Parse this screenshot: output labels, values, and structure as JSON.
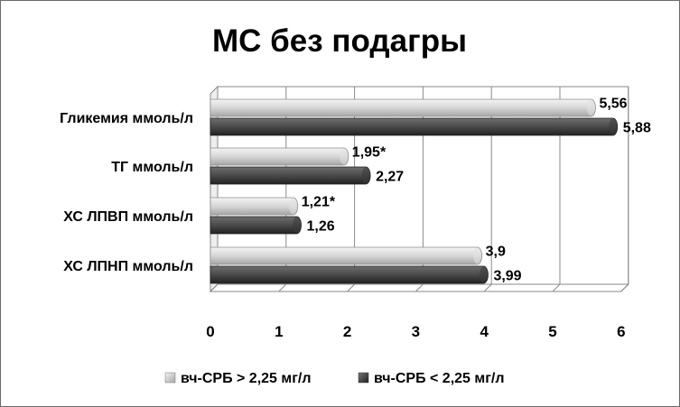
{
  "chart_data": {
    "type": "bar",
    "orientation": "horizontal",
    "title": "МС без подагры",
    "categories": [
      "Гликемия ммоль/л",
      "ТГ ммоль/л",
      "ХС ЛПВП ммоль/л",
      "ХС ЛПНП ммоль/л"
    ],
    "series": [
      {
        "name": "вч-СРБ > 2,25 мг/л",
        "color": "#d4d4d4",
        "values": [
          5.56,
          1.95,
          1.21,
          3.9
        ],
        "labels": [
          "5,56",
          "1,95*",
          "1,21*",
          "3,9"
        ]
      },
      {
        "name": "вч-СРБ < 2,25 мг/л",
        "color": "#4a4a4a",
        "values": [
          5.88,
          2.27,
          1.26,
          3.99
        ],
        "labels": [
          "5,88",
          "2,27",
          "1,26",
          "3,99"
        ]
      }
    ],
    "xlim": [
      0,
      6
    ],
    "ticks": [
      "0",
      "1",
      "2",
      "3",
      "4",
      "5",
      "6"
    ],
    "grid": true,
    "legend_position": "bottom"
  }
}
